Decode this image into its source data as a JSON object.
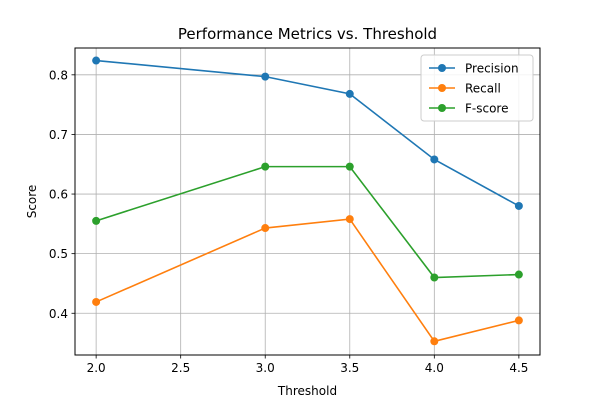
{
  "chart_data": {
    "type": "line",
    "title": "Performance Metrics vs. Threshold",
    "xlabel": "Threshold",
    "ylabel": "Score",
    "x": [
      2.0,
      3.0,
      3.5,
      4.0,
      4.5
    ],
    "xlim": [
      1.875,
      4.625
    ],
    "ylim": [
      0.33,
      0.845
    ],
    "xticks": [
      2.0,
      2.5,
      3.0,
      3.5,
      4.0,
      4.5
    ],
    "xtick_labels": [
      "2.0",
      "2.5",
      "3.0",
      "3.5",
      "4.0",
      "4.5"
    ],
    "yticks": [
      0.4,
      0.5,
      0.6,
      0.7,
      0.8
    ],
    "ytick_labels": [
      "0.4",
      "0.5",
      "0.6",
      "0.7",
      "0.8"
    ],
    "grid": true,
    "legend_position": "top-right",
    "series": [
      {
        "name": "Precision",
        "color": "#1f77b4",
        "values": [
          0.824,
          0.797,
          0.768,
          0.658,
          0.58
        ]
      },
      {
        "name": "Recall",
        "color": "#ff7f0e",
        "values": [
          0.419,
          0.543,
          0.558,
          0.353,
          0.388
        ]
      },
      {
        "name": "F-score",
        "color": "#2ca02c",
        "values": [
          0.555,
          0.646,
          0.646,
          0.46,
          0.465
        ]
      }
    ]
  }
}
